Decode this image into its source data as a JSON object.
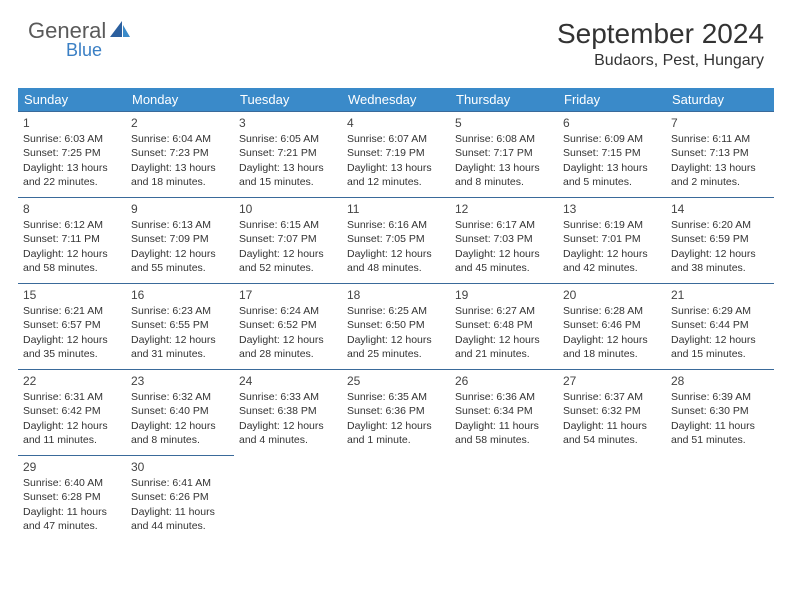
{
  "logo": {
    "text1": "General",
    "text2": "Blue"
  },
  "title": "September 2024",
  "location": "Budaors, Pest, Hungary",
  "header_bg": "#3a8ac9",
  "header_fg": "#ffffff",
  "cell_border": "#3a6a9a",
  "day_names": [
    "Sunday",
    "Monday",
    "Tuesday",
    "Wednesday",
    "Thursday",
    "Friday",
    "Saturday"
  ],
  "days": [
    {
      "n": "1",
      "sunrise": "6:03 AM",
      "sunset": "7:25 PM",
      "daylight": "13 hours and 22 minutes."
    },
    {
      "n": "2",
      "sunrise": "6:04 AM",
      "sunset": "7:23 PM",
      "daylight": "13 hours and 18 minutes."
    },
    {
      "n": "3",
      "sunrise": "6:05 AM",
      "sunset": "7:21 PM",
      "daylight": "13 hours and 15 minutes."
    },
    {
      "n": "4",
      "sunrise": "6:07 AM",
      "sunset": "7:19 PM",
      "daylight": "13 hours and 12 minutes."
    },
    {
      "n": "5",
      "sunrise": "6:08 AM",
      "sunset": "7:17 PM",
      "daylight": "13 hours and 8 minutes."
    },
    {
      "n": "6",
      "sunrise": "6:09 AM",
      "sunset": "7:15 PM",
      "daylight": "13 hours and 5 minutes."
    },
    {
      "n": "7",
      "sunrise": "6:11 AM",
      "sunset": "7:13 PM",
      "daylight": "13 hours and 2 minutes."
    },
    {
      "n": "8",
      "sunrise": "6:12 AM",
      "sunset": "7:11 PM",
      "daylight": "12 hours and 58 minutes."
    },
    {
      "n": "9",
      "sunrise": "6:13 AM",
      "sunset": "7:09 PM",
      "daylight": "12 hours and 55 minutes."
    },
    {
      "n": "10",
      "sunrise": "6:15 AM",
      "sunset": "7:07 PM",
      "daylight": "12 hours and 52 minutes."
    },
    {
      "n": "11",
      "sunrise": "6:16 AM",
      "sunset": "7:05 PM",
      "daylight": "12 hours and 48 minutes."
    },
    {
      "n": "12",
      "sunrise": "6:17 AM",
      "sunset": "7:03 PM",
      "daylight": "12 hours and 45 minutes."
    },
    {
      "n": "13",
      "sunrise": "6:19 AM",
      "sunset": "7:01 PM",
      "daylight": "12 hours and 42 minutes."
    },
    {
      "n": "14",
      "sunrise": "6:20 AM",
      "sunset": "6:59 PM",
      "daylight": "12 hours and 38 minutes."
    },
    {
      "n": "15",
      "sunrise": "6:21 AM",
      "sunset": "6:57 PM",
      "daylight": "12 hours and 35 minutes."
    },
    {
      "n": "16",
      "sunrise": "6:23 AM",
      "sunset": "6:55 PM",
      "daylight": "12 hours and 31 minutes."
    },
    {
      "n": "17",
      "sunrise": "6:24 AM",
      "sunset": "6:52 PM",
      "daylight": "12 hours and 28 minutes."
    },
    {
      "n": "18",
      "sunrise": "6:25 AM",
      "sunset": "6:50 PM",
      "daylight": "12 hours and 25 minutes."
    },
    {
      "n": "19",
      "sunrise": "6:27 AM",
      "sunset": "6:48 PM",
      "daylight": "12 hours and 21 minutes."
    },
    {
      "n": "20",
      "sunrise": "6:28 AM",
      "sunset": "6:46 PM",
      "daylight": "12 hours and 18 minutes."
    },
    {
      "n": "21",
      "sunrise": "6:29 AM",
      "sunset": "6:44 PM",
      "daylight": "12 hours and 15 minutes."
    },
    {
      "n": "22",
      "sunrise": "6:31 AM",
      "sunset": "6:42 PM",
      "daylight": "12 hours and 11 minutes."
    },
    {
      "n": "23",
      "sunrise": "6:32 AM",
      "sunset": "6:40 PM",
      "daylight": "12 hours and 8 minutes."
    },
    {
      "n": "24",
      "sunrise": "6:33 AM",
      "sunset": "6:38 PM",
      "daylight": "12 hours and 4 minutes."
    },
    {
      "n": "25",
      "sunrise": "6:35 AM",
      "sunset": "6:36 PM",
      "daylight": "12 hours and 1 minute."
    },
    {
      "n": "26",
      "sunrise": "6:36 AM",
      "sunset": "6:34 PM",
      "daylight": "11 hours and 58 minutes."
    },
    {
      "n": "27",
      "sunrise": "6:37 AM",
      "sunset": "6:32 PM",
      "daylight": "11 hours and 54 minutes."
    },
    {
      "n": "28",
      "sunrise": "6:39 AM",
      "sunset": "6:30 PM",
      "daylight": "11 hours and 51 minutes."
    },
    {
      "n": "29",
      "sunrise": "6:40 AM",
      "sunset": "6:28 PM",
      "daylight": "11 hours and 47 minutes."
    },
    {
      "n": "30",
      "sunrise": "6:41 AM",
      "sunset": "6:26 PM",
      "daylight": "11 hours and 44 minutes."
    }
  ],
  "labels": {
    "sunrise": "Sunrise: ",
    "sunset": "Sunset: ",
    "daylight": "Daylight: "
  }
}
